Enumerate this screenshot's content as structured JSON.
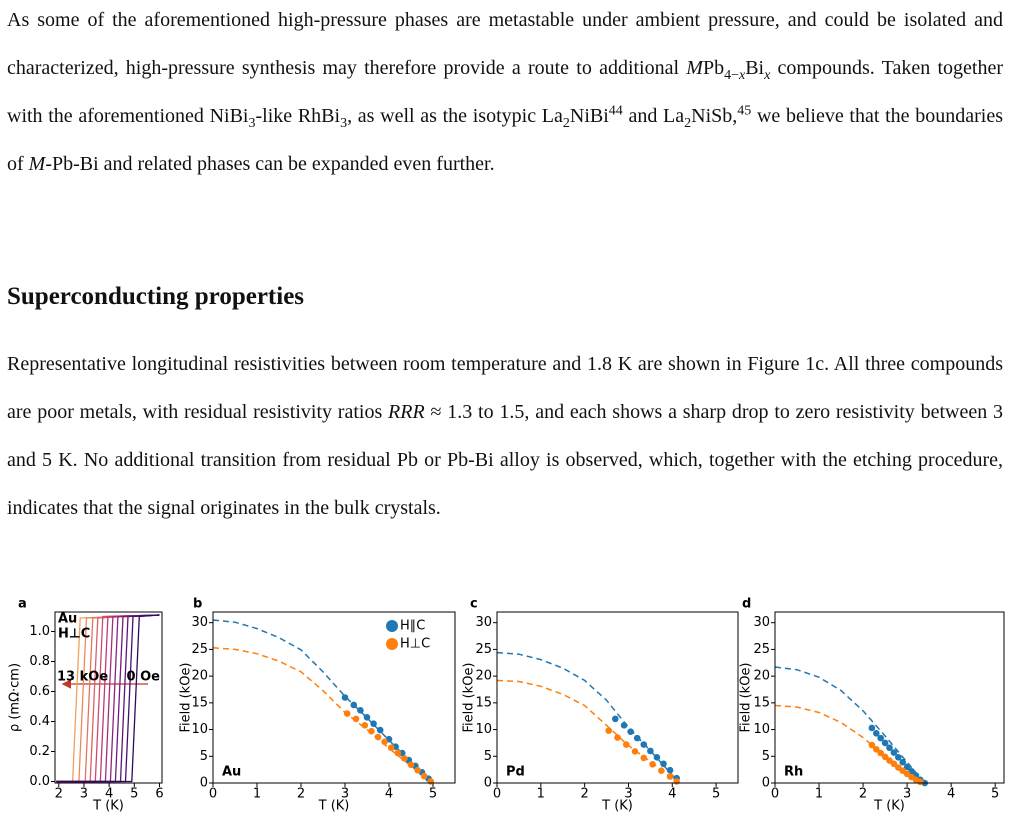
{
  "paragraphs": [
    [
      "As some of the aforementioned high-pressure phases are metastable under ambient pressure, and could be isolated and characterized, high-pressure synthesis may therefore provide a route to additional ",
      "M",
      "Pb",
      "4−",
      "x",
      "Bi",
      "x",
      " compounds. Taken together with the aforementioned NiBi",
      "3",
      "-like RhBi",
      "3",
      ", as well as the isotypic La",
      "2",
      "NiBi",
      "44",
      " and La",
      "2",
      "NiSb,",
      "45",
      " we believe that the boundaries of ",
      "M",
      "-Pb-Bi and related phases can be expanded even further."
    ],
    [
      "Representative longitudinal resistivities between room temperature and 1.8 K are shown in Figure 1c. All three compounds are poor metals, with residual resistivity ratios ",
      "RRR",
      " ≈ 1.3 to 1.5, and each shows a sharp drop to zero resistivity between 3 and 5 K. No additional transition from residual Pb or Pb-Bi alloy is observed, which, together with the etching procedure, indicates that the signal originates in the bulk crystals."
    ]
  ],
  "heading": "Superconducting properties",
  "chart_data": [
    {
      "type": "line",
      "label": "a",
      "xlabel": "T (K)",
      "ylabel": "ρ (mΩ·cm)",
      "annotations": [
        "Au",
        "H⊥C",
        "13 kOe",
        "0 Oe"
      ],
      "xlim": [
        1.85,
        6.1
      ],
      "ylim": [
        -0.01,
        1.13
      ],
      "xticks": [
        2,
        3,
        4,
        5,
        6
      ],
      "yticks": [
        {
          "value": 0,
          "label": "0.0"
        },
        {
          "value": 0.2,
          "label": "0.2"
        },
        {
          "value": 0.4,
          "label": "0.4"
        },
        {
          "value": 0.6,
          "label": "0.6"
        },
        {
          "value": 0.8,
          "label": "0.8"
        },
        {
          "value": 1.0,
          "label": "1.0"
        }
      ],
      "series": [
        {
          "color": "#f3a05a",
          "x": [
            1.9,
            2.55,
            2.7,
            2.85,
            6.0
          ],
          "values": [
            0,
            0,
            0.55,
            1.09,
            1.11
          ]
        },
        {
          "color": "#ee8a5a",
          "x": [
            1.9,
            2.8,
            2.95,
            3.1,
            6.0
          ],
          "values": [
            0,
            0,
            0.55,
            1.09,
            1.11
          ]
        },
        {
          "color": "#e6735e",
          "x": [
            1.9,
            3.05,
            3.2,
            3.35,
            6.0
          ],
          "values": [
            0,
            0,
            0.55,
            1.09,
            1.11
          ]
        },
        {
          "color": "#db5f66",
          "x": [
            1.9,
            3.25,
            3.4,
            3.55,
            6.0
          ],
          "values": [
            0,
            0,
            0.55,
            1.09,
            1.11
          ]
        },
        {
          "color": "#cc4c6f",
          "x": [
            1.9,
            3.45,
            3.6,
            3.75,
            6.0
          ],
          "values": [
            0,
            0,
            0.55,
            1.1,
            1.11
          ]
        },
        {
          "color": "#ba3b77",
          "x": [
            1.9,
            3.65,
            3.8,
            3.95,
            6.0
          ],
          "values": [
            0,
            0,
            0.55,
            1.1,
            1.11
          ]
        },
        {
          "color": "#a42e7d",
          "x": [
            1.9,
            3.85,
            4.0,
            4.15,
            6.0
          ],
          "values": [
            0,
            0,
            0.55,
            1.1,
            1.11
          ]
        },
        {
          "color": "#8c2381",
          "x": [
            1.9,
            4.05,
            4.2,
            4.35,
            6.0
          ],
          "values": [
            0,
            0,
            0.55,
            1.1,
            1.11
          ]
        },
        {
          "color": "#731a80",
          "x": [
            1.9,
            4.25,
            4.4,
            4.55,
            6.0
          ],
          "values": [
            0,
            0,
            0.55,
            1.1,
            1.11
          ]
        },
        {
          "color": "#5b157a",
          "x": [
            1.9,
            4.45,
            4.6,
            4.75,
            6.0
          ],
          "values": [
            0,
            0,
            0.55,
            1.1,
            1.11
          ]
        },
        {
          "color": "#44106f",
          "x": [
            1.9,
            4.65,
            4.8,
            4.95,
            6.0
          ],
          "values": [
            0,
            0,
            0.55,
            1.1,
            1.11
          ]
        },
        {
          "color": "#2c0a5e",
          "x": [
            1.9,
            4.9,
            5.05,
            5.2,
            6.0
          ],
          "values": [
            0,
            0,
            0.55,
            1.1,
            1.11
          ]
        }
      ]
    },
    {
      "type": "scatter",
      "label": "b",
      "xlabel": "T (K)",
      "ylabel": "Field (kOe)",
      "annotations": [
        "Au"
      ],
      "legend": "upper right",
      "xlim": [
        0,
        5.5
      ],
      "ylim": [
        0,
        32
      ],
      "xticks": [
        0,
        1,
        2,
        3,
        4,
        5
      ],
      "yticks": [
        0,
        5,
        10,
        15,
        20,
        25,
        30
      ],
      "series": [
        {
          "name": "H∥C",
          "color": "#1f77b4",
          "x": [
            3.0,
            3.2,
            3.35,
            3.5,
            3.65,
            3.8,
            4.0,
            4.15,
            4.3,
            4.45,
            4.6,
            4.75,
            4.9
          ],
          "values": [
            16,
            14.6,
            13.6,
            12.3,
            11.1,
            9.9,
            8.2,
            6.8,
            5.6,
            4.3,
            3.2,
            2,
            0.8
          ]
        },
        {
          "name": "H⊥C",
          "color": "#ff7f0e",
          "x": [
            3.05,
            3.25,
            3.45,
            3.6,
            3.75,
            3.9,
            4.05,
            4.2,
            4.35,
            4.5,
            4.65,
            4.8,
            4.95
          ],
          "values": [
            13,
            12,
            10.8,
            9.7,
            8.6,
            7.7,
            6.6,
            5.6,
            4.6,
            3.4,
            2.4,
            1.3,
            0.3
          ]
        }
      ],
      "fits": [
        {
          "color": "#1f77b4",
          "x": [
            0,
            0.5,
            1,
            1.5,
            2,
            2.5,
            3,
            3.5,
            4,
            4.5,
            5
          ],
          "values": [
            30.5,
            30.1,
            28.9,
            27.2,
            24.9,
            20.8,
            16.2,
            12.2,
            8.0,
            3.9,
            0
          ]
        },
        {
          "color": "#ff7f0e",
          "x": [
            0,
            0.5,
            1,
            1.5,
            2,
            2.5,
            3,
            3.5,
            4,
            4.5,
            5
          ],
          "values": [
            25.3,
            25.0,
            24.2,
            22.8,
            20.8,
            17.3,
            13.2,
            10.0,
            6.5,
            3.2,
            0
          ]
        }
      ]
    },
    {
      "type": "scatter",
      "label": "c",
      "xlabel": "T (K)",
      "ylabel": "Field (kOe)",
      "annotations": [
        "Pd"
      ],
      "xlim": [
        0,
        5.5
      ],
      "ylim": [
        0,
        32
      ],
      "xticks": [
        0,
        1,
        2,
        3,
        4,
        5
      ],
      "yticks": [
        0,
        5,
        10,
        15,
        20,
        25,
        30
      ],
      "series": [
        {
          "color": "#1f77b4",
          "x": [
            2.7,
            2.9,
            3.05,
            3.2,
            3.35,
            3.5,
            3.65,
            3.8,
            3.95,
            4.1
          ],
          "values": [
            12,
            10.8,
            9.6,
            8.4,
            7.2,
            6.0,
            4.8,
            3.6,
            2.4,
            0.9
          ]
        },
        {
          "color": "#ff7f0e",
          "x": [
            2.55,
            2.75,
            2.95,
            3.15,
            3.35,
            3.55,
            3.75,
            3.95,
            4.1
          ],
          "values": [
            9.8,
            8.5,
            7.2,
            5.9,
            4.7,
            3.5,
            2.3,
            1.2,
            0.3
          ]
        }
      ],
      "fits": [
        {
          "color": "#1f77b4",
          "x": [
            0,
            0.5,
            1,
            1.5,
            2,
            2.5,
            3,
            3.5,
            4,
            4.15
          ],
          "values": [
            24.4,
            24.1,
            23.1,
            21.5,
            19.2,
            15.5,
            10.4,
            6.0,
            1.5,
            0
          ]
        },
        {
          "color": "#ff7f0e",
          "x": [
            0,
            0.5,
            1,
            1.5,
            2,
            2.5,
            3,
            3.5,
            4,
            4.15
          ],
          "values": [
            19.2,
            19.0,
            18.1,
            16.6,
            14.5,
            10.8,
            7.0,
            4.0,
            0.9,
            0
          ]
        }
      ]
    },
    {
      "type": "scatter",
      "label": "d",
      "xlabel": "T (K)",
      "ylabel": "Field (kOe)",
      "annotations": [
        "Rh"
      ],
      "xlim": [
        0,
        5.2
      ],
      "ylim": [
        0,
        32
      ],
      "xticks": [
        0,
        1,
        2,
        3,
        4,
        5
      ],
      "yticks": [
        0,
        5,
        10,
        15,
        20,
        25,
        30
      ],
      "series": [
        {
          "color": "#1f77b4",
          "x": [
            2.2,
            2.3,
            2.4,
            2.5,
            2.6,
            2.7,
            2.8,
            2.9,
            3.0,
            3.1,
            3.2,
            3.3,
            3.4
          ],
          "values": [
            10.3,
            9.3,
            8.4,
            7.5,
            6.6,
            5.7,
            4.8,
            3.9,
            3.0,
            2.2,
            1.4,
            0.6,
            0
          ]
        },
        {
          "color": "#ff7f0e",
          "x": [
            2.2,
            2.3,
            2.4,
            2.5,
            2.6,
            2.7,
            2.8,
            2.9,
            3.0,
            3.1,
            3.2,
            3.3
          ],
          "values": [
            7.1,
            6.3,
            5.6,
            4.9,
            4.2,
            3.6,
            2.9,
            2.3,
            1.7,
            1.1,
            0.6,
            0.2
          ]
        }
      ],
      "fits": [
        {
          "color": "#1f77b4",
          "x": [
            0,
            0.5,
            1,
            1.5,
            2,
            2.5,
            3,
            3.4
          ],
          "values": [
            21.7,
            21.2,
            19.8,
            17.3,
            13.5,
            8.8,
            3.9,
            0
          ]
        },
        {
          "color": "#ff7f0e",
          "x": [
            0,
            0.5,
            1,
            1.5,
            2,
            2.5,
            3,
            3.4
          ],
          "values": [
            14.5,
            14.2,
            13.2,
            11.3,
            8.5,
            5.0,
            2.0,
            0
          ]
        }
      ]
    }
  ]
}
